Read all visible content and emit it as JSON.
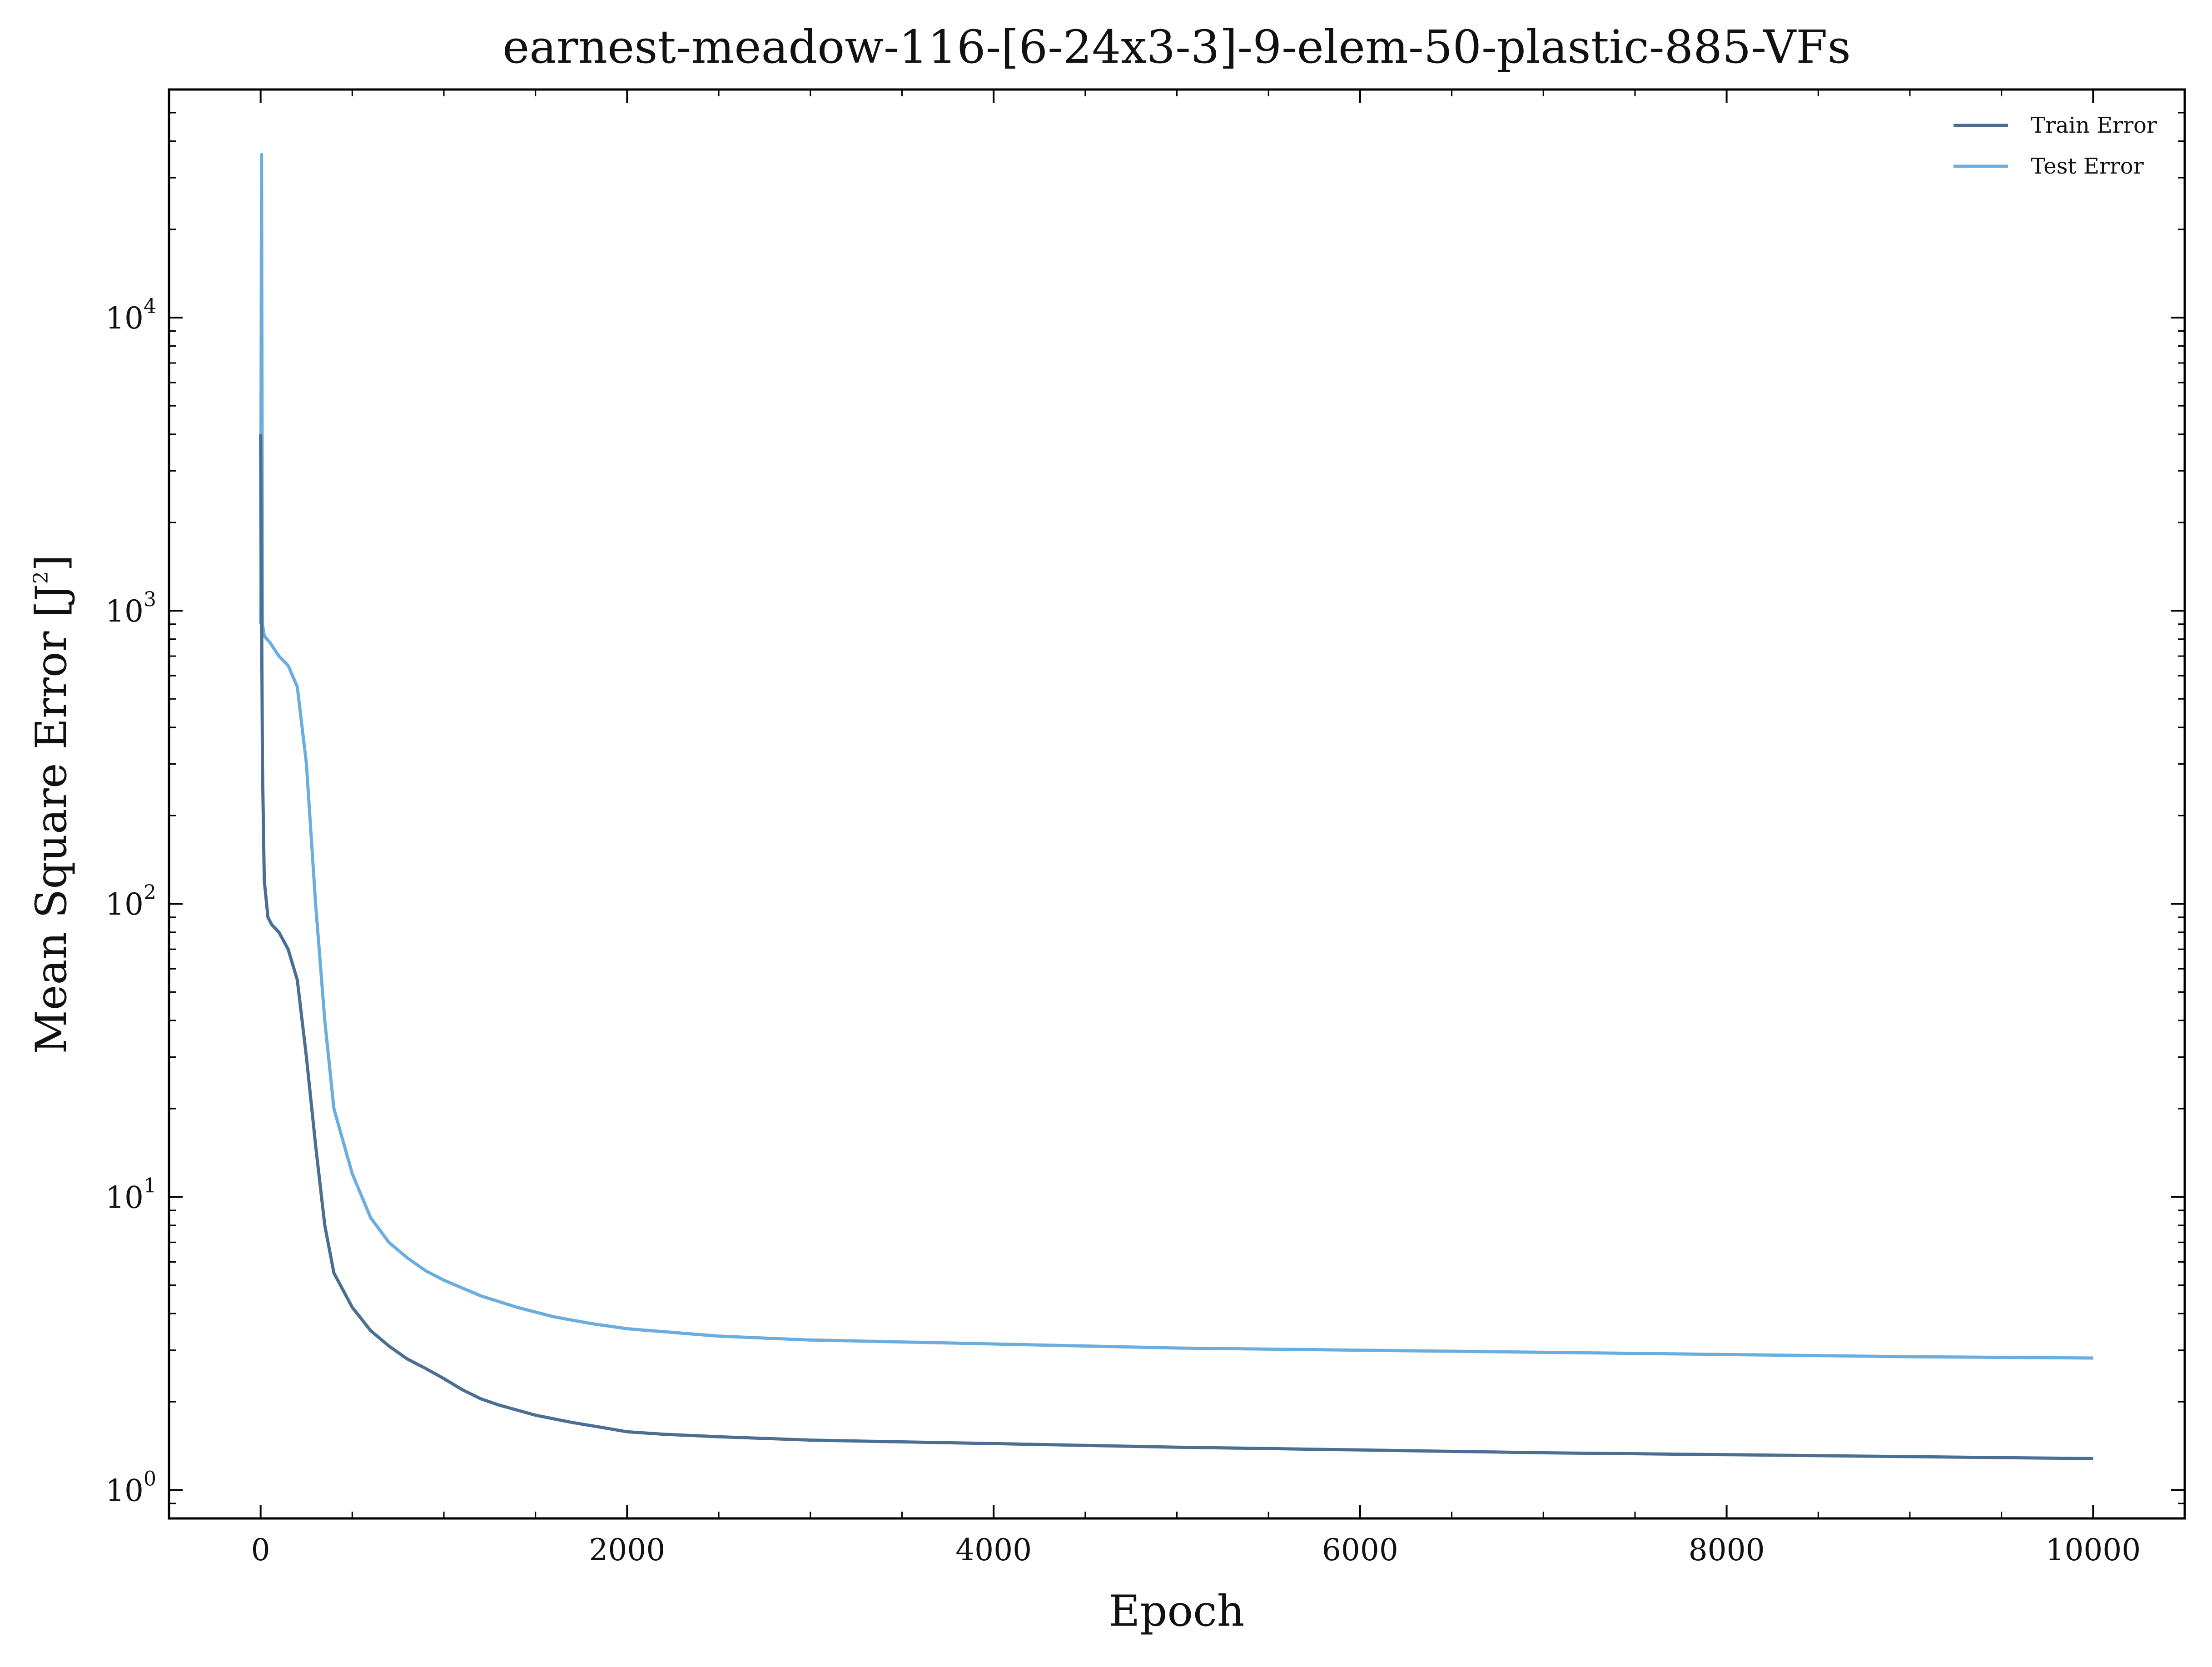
{
  "chart_data": {
    "type": "line",
    "title": "earnest-meadow-116-[6-24x3-3]-9-elem-50-plastic-885-VFs",
    "xlabel": "Epoch",
    "ylabel_main": "Mean Square Error [J",
    "ylabel_sup": "2",
    "ylabel_end": "]",
    "xscale": "linear",
    "yscale": "log",
    "xlim": [
      -500,
      10500
    ],
    "ylim": [
      0.8,
      60000
    ],
    "xticks": [
      0,
      2000,
      4000,
      6000,
      8000,
      10000
    ],
    "xtick_labels": [
      "0",
      "2000",
      "4000",
      "6000",
      "8000",
      "10000"
    ],
    "yticks": [
      1,
      10,
      100,
      1000,
      10000
    ],
    "ytick_labels": [
      {
        "base": "10",
        "exp": "0"
      },
      {
        "base": "10",
        "exp": "1"
      },
      {
        "base": "10",
        "exp": "2"
      },
      {
        "base": "10",
        "exp": "3"
      },
      {
        "base": "10",
        "exp": "4"
      }
    ],
    "grid": false,
    "legend_position": "top-right",
    "series": [
      {
        "name": "Train Error",
        "color": "#4a6f93",
        "x": [
          0,
          10,
          20,
          40,
          60,
          100,
          150,
          200,
          250,
          300,
          350,
          400,
          500,
          600,
          700,
          800,
          900,
          1000,
          1100,
          1200,
          1300,
          1500,
          1700,
          1900,
          2000,
          2200,
          2500,
          3000,
          3500,
          4000,
          5000,
          6000,
          7000,
          8000,
          9000,
          10000
        ],
        "y": [
          4000,
          300,
          120,
          90,
          85,
          80,
          70,
          55,
          30,
          15,
          8,
          5.5,
          4.2,
          3.5,
          3.1,
          2.8,
          2.6,
          2.4,
          2.2,
          2.05,
          1.95,
          1.8,
          1.7,
          1.62,
          1.58,
          1.55,
          1.52,
          1.48,
          1.46,
          1.44,
          1.4,
          1.37,
          1.34,
          1.32,
          1.3,
          1.28
        ]
      },
      {
        "name": "Test Error",
        "color": "#6aaee0",
        "x": [
          0,
          5,
          10,
          20,
          50,
          100,
          150,
          200,
          250,
          300,
          350,
          400,
          500,
          600,
          700,
          800,
          900,
          1000,
          1200,
          1400,
          1600,
          1800,
          2000,
          2500,
          3000,
          3500,
          4000,
          5000,
          6000,
          7000,
          8000,
          9000,
          10000
        ],
        "y": [
          900,
          36000,
          900,
          820,
          780,
          700,
          650,
          550,
          300,
          100,
          40,
          20,
          12,
          8.5,
          7,
          6.2,
          5.6,
          5.2,
          4.6,
          4.2,
          3.9,
          3.7,
          3.55,
          3.35,
          3.25,
          3.2,
          3.15,
          3.05,
          3.0,
          2.95,
          2.9,
          2.85,
          2.82
        ]
      }
    ]
  }
}
